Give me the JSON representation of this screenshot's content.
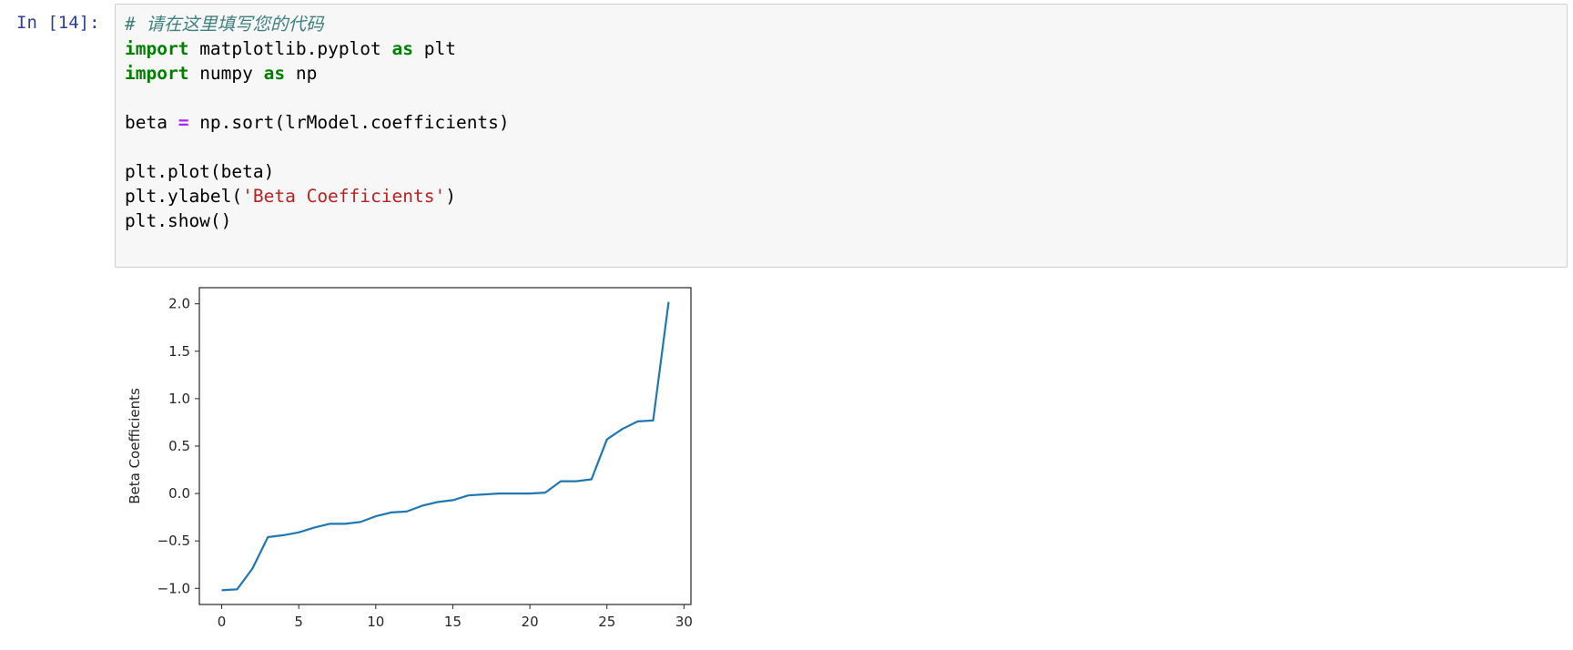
{
  "cell": {
    "prompt": "In [14]:",
    "code_lines": [
      [
        {
          "t": "# 请在这里填写您的代码",
          "c": "comment"
        }
      ],
      [
        {
          "t": "import",
          "c": "kw"
        },
        {
          "t": " matplotlib.pyplot ",
          "c": ""
        },
        {
          "t": "as",
          "c": "kw"
        },
        {
          "t": " plt",
          "c": ""
        }
      ],
      [
        {
          "t": "import",
          "c": "kw"
        },
        {
          "t": " numpy ",
          "c": ""
        },
        {
          "t": "as",
          "c": "kw"
        },
        {
          "t": " np",
          "c": ""
        }
      ],
      [
        {
          "t": "",
          "c": ""
        }
      ],
      [
        {
          "t": "beta ",
          "c": ""
        },
        {
          "t": "=",
          "c": "op"
        },
        {
          "t": " np.sort(lrModel.coefficients)",
          "c": ""
        }
      ],
      [
        {
          "t": "",
          "c": ""
        }
      ],
      [
        {
          "t": "plt.plot(beta)",
          "c": ""
        }
      ],
      [
        {
          "t": "plt.ylabel(",
          "c": ""
        },
        {
          "t": "'Beta Coefficients'",
          "c": "str"
        },
        {
          "t": ")",
          "c": ""
        }
      ],
      [
        {
          "t": "plt.show()",
          "c": ""
        }
      ]
    ]
  },
  "chart_data": {
    "type": "line",
    "title": "",
    "xlabel": "",
    "ylabel": "Beta Coefficients",
    "xlim": [
      -1.45,
      30.45
    ],
    "ylim": [
      -1.17,
      2.17
    ],
    "xticks": [
      0,
      5,
      10,
      15,
      20,
      25,
      30
    ],
    "yticks": [
      -1.0,
      -0.5,
      0.0,
      0.5,
      1.0,
      1.5,
      2.0
    ],
    "ytick_labels": [
      "−1.0",
      "−0.5",
      "0.0",
      "0.5",
      "1.0",
      "1.5",
      "2.0"
    ],
    "grid": false,
    "line_color": "#1f77b4",
    "x": [
      0,
      1,
      2,
      3,
      4,
      5,
      6,
      7,
      8,
      9,
      10,
      11,
      12,
      13,
      14,
      15,
      16,
      17,
      18,
      19,
      20,
      21,
      22,
      23,
      24,
      25,
      26,
      27,
      28,
      29
    ],
    "values": [
      -1.02,
      -1.01,
      -0.79,
      -0.46,
      -0.44,
      -0.41,
      -0.36,
      -0.32,
      -0.32,
      -0.3,
      -0.24,
      -0.2,
      -0.19,
      -0.13,
      -0.09,
      -0.07,
      -0.02,
      -0.01,
      0.0,
      0.0,
      0.0,
      0.01,
      0.13,
      0.13,
      0.15,
      0.57,
      0.68,
      0.76,
      0.77,
      2.02
    ]
  }
}
